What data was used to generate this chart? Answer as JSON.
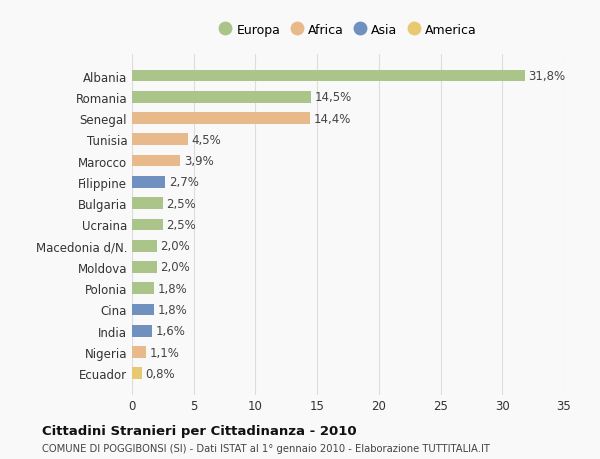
{
  "countries": [
    "Albania",
    "Romania",
    "Senegal",
    "Tunisia",
    "Marocco",
    "Filippine",
    "Bulgaria",
    "Ucraina",
    "Macedonia d/N.",
    "Moldova",
    "Polonia",
    "Cina",
    "India",
    "Nigeria",
    "Ecuador"
  ],
  "values": [
    31.8,
    14.5,
    14.4,
    4.5,
    3.9,
    2.7,
    2.5,
    2.5,
    2.0,
    2.0,
    1.8,
    1.8,
    1.6,
    1.1,
    0.8
  ],
  "labels": [
    "31,8%",
    "14,5%",
    "14,4%",
    "4,5%",
    "3,9%",
    "2,7%",
    "2,5%",
    "2,5%",
    "2,0%",
    "2,0%",
    "1,8%",
    "1,8%",
    "1,6%",
    "1,1%",
    "0,8%"
  ],
  "continents": [
    "Europa",
    "Europa",
    "Africa",
    "Africa",
    "Africa",
    "Asia",
    "Europa",
    "Europa",
    "Europa",
    "Europa",
    "Europa",
    "Asia",
    "Asia",
    "Africa",
    "America"
  ],
  "colors": {
    "Europa": "#aac48a",
    "Africa": "#e8b98a",
    "Asia": "#7090c0",
    "America": "#e8c870"
  },
  "legend_order": [
    "Europa",
    "Africa",
    "Asia",
    "America"
  ],
  "title": "Cittadini Stranieri per Cittadinanza - 2010",
  "subtitle": "COMUNE DI POGGIBONSI (SI) - Dati ISTAT al 1° gennaio 2010 - Elaborazione TUTTITALIA.IT",
  "xlim": [
    0,
    35
  ],
  "xticks": [
    0,
    5,
    10,
    15,
    20,
    25,
    30,
    35
  ],
  "background_color": "#f9f9f9",
  "grid_color": "#dddddd",
  "bar_height": 0.55,
  "label_fontsize": 8.5,
  "ytick_fontsize": 8.5,
  "xtick_fontsize": 8.5
}
